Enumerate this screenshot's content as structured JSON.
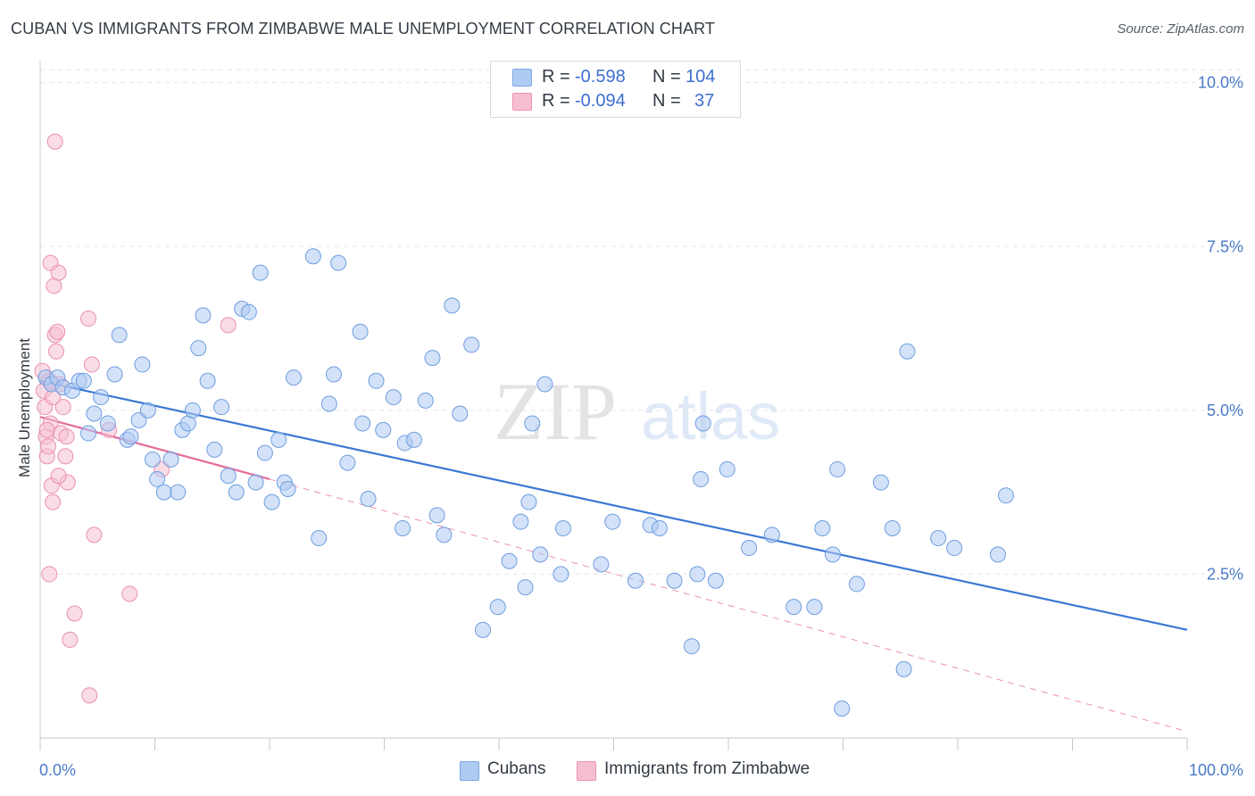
{
  "header": {
    "title": "CUBAN VS IMMIGRANTS FROM ZIMBABWE MALE UNEMPLOYMENT CORRELATION CHART",
    "source": "Source: ZipAtlas.com"
  },
  "legend": {
    "rows": [
      {
        "r_label": "R =",
        "r_value": "-0.598",
        "n_label": "N =",
        "n_value": "104",
        "color": "#aecbf2"
      },
      {
        "r_label": "R =",
        "r_value": "-0.094",
        "n_label": "N =",
        "n_value": "37",
        "color": "#f6bfd1"
      }
    ],
    "bottom": [
      {
        "name": "Cubans",
        "color": "#aecbf2"
      },
      {
        "name": "Immigrants from Zimbabwe",
        "color": "#f6bfd1"
      }
    ]
  },
  "watermark": {
    "zip": "ZIP",
    "atlas": "atlas"
  },
  "chart_data": {
    "type": "scatter",
    "title": "CUBAN VS IMMIGRANTS FROM ZIMBABWE MALE UNEMPLOYMENT CORRELATION CHART",
    "xlabel": "",
    "ylabel": "Male Unemployment",
    "xlim": [
      0,
      100
    ],
    "ylim": [
      0,
      10.2
    ],
    "x_tick_labels": [
      "0.0%",
      "100.0%"
    ],
    "y_ticks": [
      2.5,
      5.0,
      7.5,
      10.0
    ],
    "y_tick_labels": [
      "2.5%",
      "5.0%",
      "7.5%",
      "10.0%"
    ],
    "grid": "horizontal dashed",
    "legend_position": "top-center",
    "colors": {
      "cubans": "#3a78d4",
      "cubans_fill": "#aecbf2",
      "zimbabwe": "#e36d9a",
      "zimbabwe_fill": "#f6bfd1"
    },
    "series": [
      {
        "name": "Cubans",
        "points": [
          [
            0.5,
            5.5
          ],
          [
            1.0,
            5.4
          ],
          [
            1.5,
            5.5
          ],
          [
            2.0,
            5.35
          ],
          [
            2.8,
            5.3
          ],
          [
            3.4,
            5.45
          ],
          [
            3.8,
            5.45
          ],
          [
            4.2,
            4.65
          ],
          [
            4.7,
            4.95
          ],
          [
            5.3,
            5.2
          ],
          [
            5.9,
            4.8
          ],
          [
            6.5,
            5.55
          ],
          [
            6.9,
            6.15
          ],
          [
            7.6,
            4.55
          ],
          [
            7.9,
            4.6
          ],
          [
            8.6,
            4.85
          ],
          [
            8.9,
            5.7
          ],
          [
            9.4,
            5.0
          ],
          [
            9.8,
            4.25
          ],
          [
            10.2,
            3.95
          ],
          [
            10.8,
            3.75
          ],
          [
            11.4,
            4.25
          ],
          [
            12.0,
            3.75
          ],
          [
            12.4,
            4.7
          ],
          [
            12.9,
            4.8
          ],
          [
            13.3,
            5.0
          ],
          [
            13.8,
            5.95
          ],
          [
            14.2,
            6.45
          ],
          [
            14.6,
            5.45
          ],
          [
            15.2,
            4.4
          ],
          [
            15.8,
            5.05
          ],
          [
            16.4,
            4.0
          ],
          [
            17.1,
            3.75
          ],
          [
            17.6,
            6.55
          ],
          [
            18.2,
            6.5
          ],
          [
            18.8,
            3.9
          ],
          [
            19.2,
            7.1
          ],
          [
            19.6,
            4.35
          ],
          [
            20.2,
            3.6
          ],
          [
            20.8,
            4.55
          ],
          [
            21.3,
            3.9
          ],
          [
            21.6,
            3.8
          ],
          [
            22.1,
            5.5
          ],
          [
            23.8,
            7.35
          ],
          [
            24.3,
            3.05
          ],
          [
            25.2,
            5.1
          ],
          [
            25.6,
            5.55
          ],
          [
            26.0,
            7.25
          ],
          [
            26.8,
            4.2
          ],
          [
            27.9,
            6.2
          ],
          [
            28.1,
            4.8
          ],
          [
            28.6,
            3.65
          ],
          [
            29.3,
            5.45
          ],
          [
            29.9,
            4.7
          ],
          [
            30.8,
            5.2
          ],
          [
            31.6,
            3.2
          ],
          [
            31.8,
            4.5
          ],
          [
            32.6,
            4.55
          ],
          [
            33.6,
            5.15
          ],
          [
            34.2,
            5.8
          ],
          [
            34.6,
            3.4
          ],
          [
            35.2,
            3.1
          ],
          [
            35.9,
            6.6
          ],
          [
            36.6,
            4.95
          ],
          [
            37.6,
            6.0
          ],
          [
            38.6,
            1.65
          ],
          [
            39.9,
            2.0
          ],
          [
            40.9,
            2.7
          ],
          [
            41.9,
            3.3
          ],
          [
            42.3,
            2.3
          ],
          [
            42.6,
            3.6
          ],
          [
            42.9,
            4.8
          ],
          [
            43.6,
            2.8
          ],
          [
            44.0,
            5.4
          ],
          [
            45.4,
            2.5
          ],
          [
            45.6,
            3.2
          ],
          [
            48.9,
            2.65
          ],
          [
            49.9,
            3.3
          ],
          [
            51.9,
            2.4
          ],
          [
            53.2,
            3.25
          ],
          [
            54.0,
            3.2
          ],
          [
            55.3,
            2.4
          ],
          [
            56.8,
            1.4
          ],
          [
            57.3,
            2.5
          ],
          [
            57.8,
            4.8
          ],
          [
            58.9,
            2.4
          ],
          [
            57.6,
            3.95
          ],
          [
            59.9,
            4.1
          ],
          [
            61.8,
            2.9
          ],
          [
            63.8,
            3.1
          ],
          [
            65.7,
            2.0
          ],
          [
            67.5,
            2.0
          ],
          [
            68.2,
            3.2
          ],
          [
            69.1,
            2.8
          ],
          [
            69.9,
            0.45
          ],
          [
            69.5,
            4.1
          ],
          [
            71.2,
            2.35
          ],
          [
            73.3,
            3.9
          ],
          [
            74.3,
            3.2
          ],
          [
            75.3,
            1.05
          ],
          [
            75.6,
            5.9
          ],
          [
            78.3,
            3.05
          ],
          [
            79.7,
            2.9
          ],
          [
            83.5,
            2.8
          ],
          [
            84.2,
            3.7
          ]
        ]
      },
      {
        "name": "Immigrants from Zimbabwe",
        "points": [
          [
            0.2,
            5.6
          ],
          [
            0.3,
            5.3
          ],
          [
            0.4,
            5.05
          ],
          [
            0.5,
            4.6
          ],
          [
            0.6,
            4.3
          ],
          [
            0.7,
            4.45
          ],
          [
            0.8,
            5.45
          ],
          [
            0.9,
            4.8
          ],
          [
            1.0,
            3.85
          ],
          [
            1.1,
            3.6
          ],
          [
            0.9,
            7.25
          ],
          [
            1.2,
            6.9
          ],
          [
            1.3,
            6.15
          ],
          [
            1.5,
            6.2
          ],
          [
            1.6,
            7.1
          ],
          [
            1.7,
            5.4
          ],
          [
            1.8,
            4.65
          ],
          [
            2.0,
            5.05
          ],
          [
            2.2,
            4.3
          ],
          [
            2.4,
            3.9
          ],
          [
            1.3,
            9.1
          ],
          [
            0.8,
            2.5
          ],
          [
            2.6,
            1.5
          ],
          [
            3.0,
            1.9
          ],
          [
            4.2,
            6.4
          ],
          [
            4.5,
            5.7
          ],
          [
            4.7,
            3.1
          ],
          [
            6.0,
            4.7
          ],
          [
            7.8,
            2.2
          ],
          [
            10.6,
            4.1
          ],
          [
            16.4,
            6.3
          ],
          [
            4.3,
            0.65
          ],
          [
            1.4,
            5.9
          ],
          [
            1.6,
            4.0
          ],
          [
            0.6,
            4.7
          ],
          [
            1.1,
            5.2
          ],
          [
            2.3,
            4.6
          ]
        ]
      }
    ],
    "trend_lines": [
      {
        "series": "Cubans",
        "from": [
          0,
          5.45
        ],
        "to": [
          100,
          1.65
        ],
        "style": "solid"
      },
      {
        "series": "Immigrants from Zimbabwe",
        "from": [
          0,
          4.9
        ],
        "to": [
          20,
          3.95
        ],
        "style": "solid"
      },
      {
        "series": "Immigrants from Zimbabwe",
        "from": [
          20,
          3.95
        ],
        "to": [
          100,
          0.1
        ],
        "style": "dashed"
      }
    ]
  }
}
